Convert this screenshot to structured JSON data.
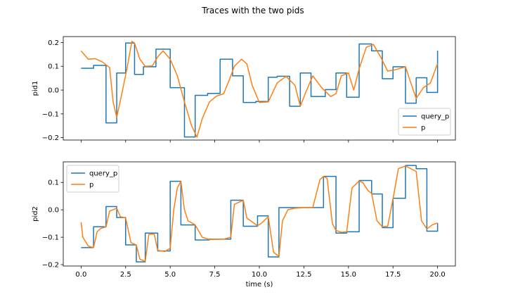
{
  "figure_title": "Traces with the two pids",
  "colors": {
    "query_p": "#1f77b4",
    "p": "#ff7f0e"
  },
  "chart_data": [
    {
      "type": "line",
      "ylabel": "pid1",
      "xlabel": "",
      "xlim": [
        -1.0,
        21.0
      ],
      "ylim": [
        -0.21,
        0.225
      ],
      "xticks": [
        0.0,
        2.5,
        5.0,
        7.5,
        10.0,
        12.5,
        15.0,
        17.5,
        20.0
      ],
      "yticks": [
        -0.2,
        -0.1,
        0.0,
        0.1,
        0.2
      ],
      "ytick_labels": [
        "−0.2",
        "−0.1",
        "0.0",
        "0.1",
        "0.2"
      ],
      "show_xtick_labels": false,
      "legend": {
        "location": "lower-right",
        "entries": [
          "query_p",
          "p"
        ]
      },
      "series": [
        {
          "name": "query_p",
          "style": "step",
          "x": [
            0.0,
            0.7,
            1.4,
            2.0,
            2.5,
            3.0,
            3.5,
            4.2,
            5.0,
            5.8,
            6.4,
            7.1,
            7.8,
            8.5,
            9.1,
            9.8,
            10.5,
            11.0,
            11.7,
            12.3,
            12.9,
            13.7,
            14.3,
            14.9,
            15.6,
            16.3,
            16.9,
            17.5,
            18.2,
            18.8,
            19.4,
            20.0
          ],
          "y": [
            0.092,
            0.104,
            -0.138,
            0.072,
            0.198,
            0.066,
            0.098,
            0.172,
            0.01,
            -0.197,
            -0.022,
            -0.014,
            0.13,
            0.06,
            -0.052,
            -0.048,
            0.054,
            0.058,
            -0.068,
            0.072,
            -0.027,
            0.002,
            0.072,
            -0.03,
            0.194,
            0.165,
            0.048,
            0.098,
            -0.055,
            0.052,
            -0.01,
            0.166
          ]
        },
        {
          "name": "p",
          "style": "smooth",
          "x": [
            0.0,
            0.4,
            0.8,
            1.2,
            1.6,
            1.8,
            2.0,
            2.3,
            2.6,
            2.85,
            3.0,
            3.3,
            3.6,
            4.0,
            4.3,
            4.6,
            5.0,
            5.4,
            5.8,
            6.2,
            6.5,
            6.8,
            7.2,
            7.6,
            8.0,
            8.3,
            8.6,
            9.0,
            9.3,
            9.6,
            10.0,
            10.5,
            11.0,
            11.5,
            12.0,
            12.3,
            12.6,
            13.0,
            13.5,
            14.0,
            14.3,
            14.6,
            15.0,
            15.3,
            15.6,
            16.0,
            16.4,
            16.8,
            17.2,
            17.6,
            18.2,
            18.5,
            18.8,
            19.2,
            19.6,
            20.0
          ],
          "y": [
            0.165,
            0.13,
            0.132,
            0.118,
            0.095,
            -0.05,
            -0.115,
            -0.01,
            0.1,
            0.205,
            0.198,
            0.13,
            0.1,
            0.102,
            0.14,
            0.165,
            0.13,
            0.06,
            -0.05,
            -0.15,
            -0.198,
            -0.12,
            -0.05,
            -0.025,
            -0.015,
            0.04,
            0.1,
            0.13,
            0.11,
            0.02,
            -0.052,
            -0.05,
            0.03,
            0.058,
            0.02,
            -0.068,
            -0.01,
            0.06,
            0.01,
            -0.027,
            -0.015,
            0.06,
            0.072,
            0.0,
            0.09,
            0.18,
            0.192,
            0.14,
            0.08,
            0.085,
            0.098,
            0.03,
            -0.035,
            0.01,
            0.03,
            0.112
          ]
        }
      ]
    },
    {
      "type": "line",
      "ylabel": "pid2",
      "xlabel": "time (s)",
      "xlim": [
        -1.0,
        21.0
      ],
      "ylim": [
        -0.205,
        0.175
      ],
      "xticks": [
        0.0,
        2.5,
        5.0,
        7.5,
        10.0,
        12.5,
        15.0,
        17.5,
        20.0
      ],
      "xtick_labels": [
        "0.0",
        "2.5",
        "5.0",
        "7.5",
        "10.0",
        "12.5",
        "15.0",
        "17.5",
        "20.0"
      ],
      "yticks": [
        -0.2,
        -0.1,
        0.0,
        0.1
      ],
      "ytick_labels": [
        "−0.2",
        "−0.1",
        "0.0",
        "0.1"
      ],
      "show_xtick_labels": true,
      "legend": {
        "location": "upper-left",
        "entries": [
          "query_p",
          "p"
        ]
      },
      "series": [
        {
          "name": "query_p",
          "style": "step",
          "x": [
            0.0,
            0.7,
            1.4,
            2.0,
            2.5,
            3.1,
            3.6,
            4.3,
            5.0,
            5.6,
            6.4,
            7.2,
            8.4,
            9.1,
            9.9,
            10.5,
            11.1,
            11.9,
            12.6,
            13.6,
            14.3,
            14.9,
            15.6,
            16.3,
            16.9,
            17.5,
            18.2,
            18.8,
            19.4,
            20.0
          ],
          "y": [
            -0.138,
            -0.062,
            0.012,
            -0.028,
            -0.128,
            -0.19,
            -0.085,
            -0.15,
            0.104,
            -0.055,
            -0.11,
            -0.107,
            0.035,
            -0.06,
            -0.022,
            -0.172,
            0.008,
            0.008,
            0.008,
            0.122,
            -0.085,
            -0.08,
            0.107,
            0.058,
            -0.065,
            0.042,
            0.162,
            0.15,
            -0.078,
            -0.048
          ]
        },
        {
          "name": "p",
          "style": "smooth",
          "x": [
            0.0,
            0.1,
            0.4,
            0.7,
            0.9,
            1.1,
            1.4,
            1.6,
            2.0,
            2.2,
            2.5,
            2.8,
            3.1,
            3.3,
            3.6,
            3.8,
            4.1,
            4.3,
            4.7,
            5.0,
            5.2,
            5.4,
            5.6,
            5.8,
            6.0,
            6.4,
            6.8,
            7.2,
            8.0,
            8.4,
            8.6,
            9.1,
            9.3,
            9.9,
            10.1,
            10.5,
            10.8,
            11.1,
            11.3,
            11.6,
            12.0,
            12.6,
            13.0,
            13.4,
            13.6,
            13.8,
            14.1,
            14.3,
            14.6,
            14.9,
            15.2,
            15.6,
            15.8,
            16.1,
            16.3,
            16.6,
            16.9,
            17.2,
            17.5,
            17.8,
            18.2,
            18.5,
            18.8,
            19.1,
            19.4,
            19.7,
            20.0
          ],
          "y": [
            -0.045,
            -0.1,
            -0.132,
            -0.138,
            -0.08,
            -0.068,
            -0.062,
            -0.005,
            0.006,
            -0.025,
            -0.03,
            -0.12,
            -0.128,
            -0.18,
            -0.188,
            -0.09,
            -0.088,
            -0.148,
            -0.152,
            -0.14,
            0.0,
            0.08,
            0.104,
            0.0,
            -0.04,
            -0.055,
            -0.1,
            -0.108,
            -0.107,
            -0.1,
            0.02,
            0.035,
            -0.03,
            -0.058,
            -0.05,
            -0.025,
            -0.155,
            -0.17,
            -0.04,
            0.0,
            0.006,
            0.008,
            0.009,
            0.11,
            0.122,
            0.115,
            -0.05,
            -0.075,
            -0.082,
            -0.08,
            0.08,
            0.105,
            0.1,
            0.07,
            0.06,
            -0.04,
            -0.062,
            -0.06,
            0.04,
            0.15,
            0.16,
            0.15,
            0.14,
            -0.04,
            -0.07,
            -0.055,
            -0.048
          ]
        }
      ]
    }
  ]
}
